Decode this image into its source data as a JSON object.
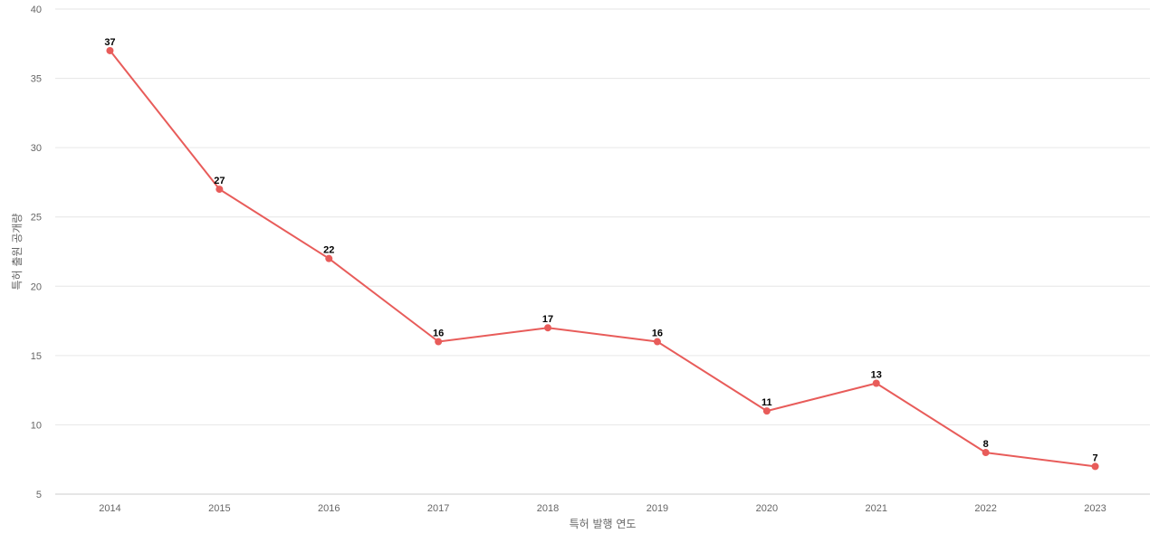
{
  "chart_data": {
    "type": "line",
    "title": "",
    "xlabel": "특허 발행 연도",
    "ylabel": "특허 출원 공개량",
    "x": [
      "2014",
      "2015",
      "2016",
      "2017",
      "2018",
      "2019",
      "2020",
      "2021",
      "2022",
      "2023"
    ],
    "series": [
      {
        "values": [
          37,
          27,
          22,
          16,
          17,
          16,
          11,
          13,
          8,
          7
        ],
        "color": "#e85c5a"
      }
    ],
    "ylim": [
      5,
      40
    ],
    "yticks": [
      "5",
      "10",
      "15",
      "20",
      "25",
      "30",
      "35",
      "40"
    ],
    "grid": "horizontal",
    "legend": "none",
    "data_labels": true
  }
}
